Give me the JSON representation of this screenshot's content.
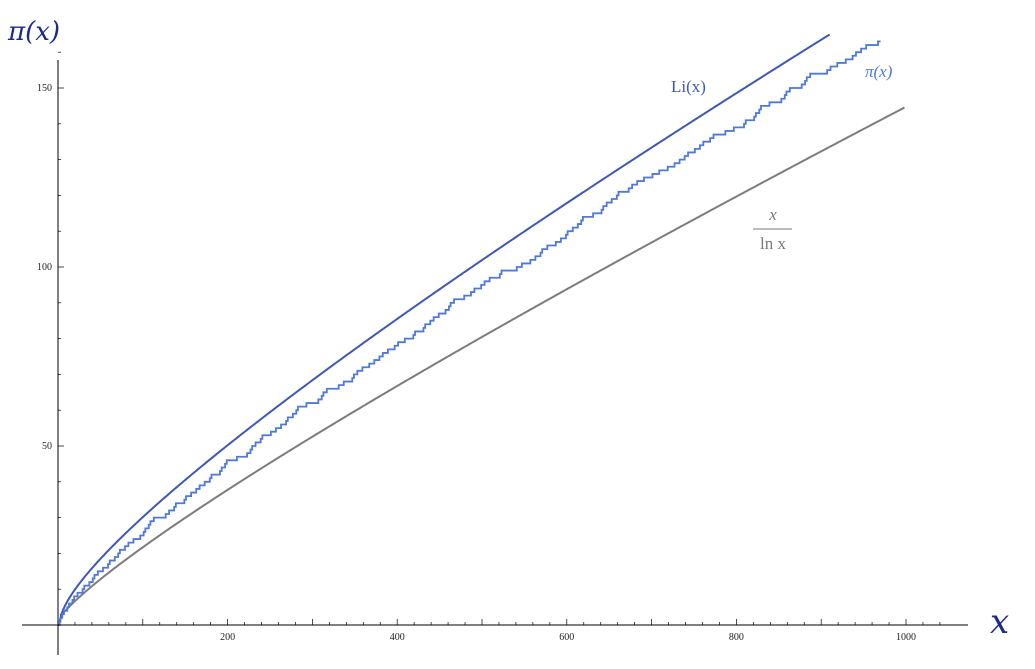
{
  "chart_data": {
    "type": "line",
    "title": "",
    "xlabel": "x",
    "ylabel": "π(x)",
    "xlim": [
      0,
      1050
    ],
    "ylim": [
      -5,
      165
    ],
    "x_ticks": [
      200,
      400,
      600,
      800,
      1000
    ],
    "y_ticks": [
      50,
      100,
      150
    ],
    "grid": false,
    "series": [
      {
        "name": "Li(x)",
        "label": "Li(x)",
        "color": "#3f58b3",
        "function": "li",
        "x_domain": [
          2,
          910
        ],
        "sample_values": [
          {
            "x": 100,
            "y": 30.1
          },
          {
            "x": 200,
            "y": 50.2
          },
          {
            "x": 400,
            "y": 85.4
          },
          {
            "x": 600,
            "y": 117.3
          },
          {
            "x": 800,
            "y": 147.6
          },
          {
            "x": 910,
            "y": 164.4
          }
        ]
      },
      {
        "name": "π(x)",
        "label": "π(x)",
        "color": "#4f79d9",
        "function": "prime_counting_step",
        "x_domain": [
          0,
          970
        ],
        "sample_values": [
          {
            "x": 100,
            "y": 25
          },
          {
            "x": 200,
            "y": 46
          },
          {
            "x": 400,
            "y": 78
          },
          {
            "x": 600,
            "y": 109
          },
          {
            "x": 800,
            "y": 139
          },
          {
            "x": 970,
            "y": 164
          }
        ]
      },
      {
        "name": "x/ln x",
        "label_numerator": "x",
        "label_denominator": "ln x",
        "color": "#7c7c7c",
        "function": "x_over_ln_x",
        "x_domain": [
          2,
          1000
        ],
        "sample_values": [
          {
            "x": 100,
            "y": 21.7
          },
          {
            "x": 200,
            "y": 37.7
          },
          {
            "x": 400,
            "y": 66.8
          },
          {
            "x": 600,
            "y": 93.8
          },
          {
            "x": 800,
            "y": 119.7
          },
          {
            "x": 1000,
            "y": 144.8
          }
        ]
      }
    ]
  }
}
